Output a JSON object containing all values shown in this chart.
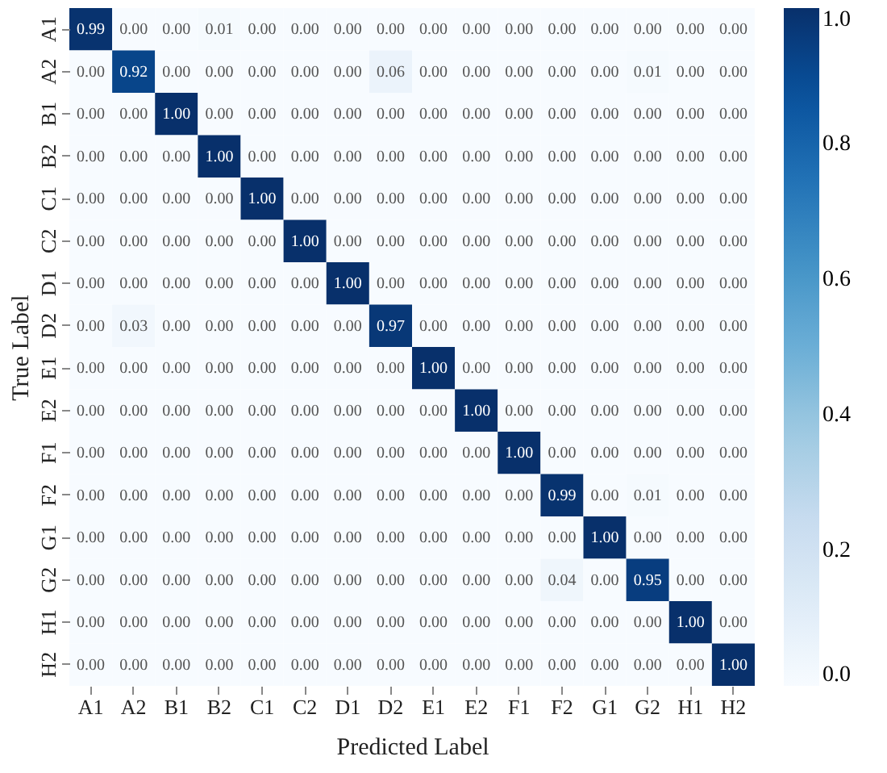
{
  "chart_data": {
    "type": "heatmap",
    "xlabel": "Predicted Label",
    "ylabel": "True Label",
    "categories": [
      "A1",
      "A2",
      "B1",
      "B2",
      "C1",
      "C2",
      "D1",
      "D2",
      "E1",
      "E2",
      "F1",
      "F2",
      "G1",
      "G2",
      "H1",
      "H2"
    ],
    "y_categories": [
      "A1",
      "A2",
      "B1",
      "B2",
      "C1",
      "C2",
      "D1",
      "D2",
      "E1",
      "E2",
      "F1",
      "F2",
      "G1",
      "G2",
      "H1",
      "H2"
    ],
    "cells": [
      [
        0.99,
        0,
        0,
        0.01,
        0,
        0,
        0,
        0,
        0,
        0,
        0,
        0,
        0,
        0,
        0,
        0
      ],
      [
        0,
        0.92,
        0,
        0,
        0,
        0,
        0,
        0.06,
        0,
        0,
        0,
        0,
        0,
        0.01,
        0,
        0
      ],
      [
        0,
        0,
        1,
        0,
        0,
        0,
        0,
        0,
        0,
        0,
        0,
        0,
        0,
        0,
        0,
        0
      ],
      [
        0,
        0,
        0,
        1,
        0,
        0,
        0,
        0,
        0,
        0,
        0,
        0,
        0,
        0,
        0,
        0
      ],
      [
        0,
        0,
        0,
        0,
        1,
        0,
        0,
        0,
        0,
        0,
        0,
        0,
        0,
        0,
        0,
        0
      ],
      [
        0,
        0,
        0,
        0,
        0,
        1,
        0,
        0,
        0,
        0,
        0,
        0,
        0,
        0,
        0,
        0
      ],
      [
        0,
        0,
        0,
        0,
        0,
        0,
        1,
        0,
        0,
        0,
        0,
        0,
        0,
        0,
        0,
        0
      ],
      [
        0,
        0.03,
        0,
        0,
        0,
        0,
        0,
        0.97,
        0,
        0,
        0,
        0,
        0,
        0,
        0,
        0
      ],
      [
        0,
        0,
        0,
        0,
        0,
        0,
        0,
        0,
        1,
        0,
        0,
        0,
        0,
        0,
        0,
        0
      ],
      [
        0,
        0,
        0,
        0,
        0,
        0,
        0,
        0,
        0,
        1,
        0,
        0,
        0,
        0,
        0,
        0
      ],
      [
        0,
        0,
        0,
        0,
        0,
        0,
        0,
        0,
        0,
        0,
        1,
        0,
        0,
        0,
        0,
        0
      ],
      [
        0,
        0,
        0,
        0,
        0,
        0,
        0,
        0,
        0,
        0,
        0,
        0.99,
        0,
        0.01,
        0,
        0
      ],
      [
        0,
        0,
        0,
        0,
        0,
        0,
        0,
        0,
        0,
        0,
        0,
        0,
        1,
        0,
        0,
        0
      ],
      [
        0,
        0,
        0,
        0,
        0,
        0,
        0,
        0,
        0,
        0,
        0,
        0.04,
        0,
        0.95,
        0,
        0
      ],
      [
        0,
        0,
        0,
        0,
        0,
        0,
        0,
        0,
        0,
        0,
        0,
        0,
        0,
        0,
        1,
        0
      ],
      [
        0,
        0,
        0,
        0,
        0,
        0,
        0,
        0,
        0,
        0,
        0,
        0,
        0,
        0,
        0,
        1
      ]
    ],
    "cell_labels": [
      [
        "0.99",
        "0.00",
        "0.00",
        "0.01",
        "0.00",
        "0.00",
        "0.00",
        "0.00",
        "0.00",
        "0.00",
        "0.00",
        "0.00",
        "0.00",
        "0.00",
        "0.00",
        "0.00"
      ],
      [
        "0.00",
        "0.92",
        "0.00",
        "0.00",
        "0.00",
        "0.00",
        "0.00",
        "0.06",
        "0.00",
        "0.00",
        "0.00",
        "0.00",
        "0.00",
        "0.01",
        "0.00",
        "0.00"
      ],
      [
        "0.00",
        "0.00",
        "1.00",
        "0.00",
        "0.00",
        "0.00",
        "0.00",
        "0.00",
        "0.00",
        "0.00",
        "0.00",
        "0.00",
        "0.00",
        "0.00",
        "0.00",
        "0.00"
      ],
      [
        "0.00",
        "0.00",
        "0.00",
        "1.00",
        "0.00",
        "0.00",
        "0.00",
        "0.00",
        "0.00",
        "0.00",
        "0.00",
        "0.00",
        "0.00",
        "0.00",
        "0.00",
        "0.00"
      ],
      [
        "0.00",
        "0.00",
        "0.00",
        "0.00",
        "1.00",
        "0.00",
        "0.00",
        "0.00",
        "0.00",
        "0.00",
        "0.00",
        "0.00",
        "0.00",
        "0.00",
        "0.00",
        "0.00"
      ],
      [
        "0.00",
        "0.00",
        "0.00",
        "0.00",
        "0.00",
        "1.00",
        "0.00",
        "0.00",
        "0.00",
        "0.00",
        "0.00",
        "0.00",
        "0.00",
        "0.00",
        "0.00",
        "0.00"
      ],
      [
        "0.00",
        "0.00",
        "0.00",
        "0.00",
        "0.00",
        "0.00",
        "1.00",
        "0.00",
        "0.00",
        "0.00",
        "0.00",
        "0.00",
        "0.00",
        "0.00",
        "0.00",
        "0.00"
      ],
      [
        "0.00",
        "0.03",
        "0.00",
        "0.00",
        "0.00",
        "0.00",
        "0.00",
        "0.97",
        "0.00",
        "0.00",
        "0.00",
        "0.00",
        "0.00",
        "0.00",
        "0.00",
        "0.00"
      ],
      [
        "0.00",
        "0.00",
        "0.00",
        "0.00",
        "0.00",
        "0.00",
        "0.00",
        "0.00",
        "1.00",
        "0.00",
        "0.00",
        "0.00",
        "0.00",
        "0.00",
        "0.00",
        "0.00"
      ],
      [
        "0.00",
        "0.00",
        "0.00",
        "0.00",
        "0.00",
        "0.00",
        "0.00",
        "0.00",
        "0.00",
        "1.00",
        "0.00",
        "0.00",
        "0.00",
        "0.00",
        "0.00",
        "0.00"
      ],
      [
        "0.00",
        "0.00",
        "0.00",
        "0.00",
        "0.00",
        "0.00",
        "0.00",
        "0.00",
        "0.00",
        "0.00",
        "1.00",
        "0.00",
        "0.00",
        "0.00",
        "0.00",
        "0.00"
      ],
      [
        "0.00",
        "0.00",
        "0.00",
        "0.00",
        "0.00",
        "0.00",
        "0.00",
        "0.00",
        "0.00",
        "0.00",
        "0.00",
        "0.99",
        "0.00",
        "0.01",
        "0.00",
        "0.00"
      ],
      [
        "0.00",
        "0.00",
        "0.00",
        "0.00",
        "0.00",
        "0.00",
        "0.00",
        "0.00",
        "0.00",
        "0.00",
        "0.00",
        "0.00",
        "1.00",
        "0.00",
        "0.00",
        "0.00"
      ],
      [
        "0.00",
        "0.00",
        "0.00",
        "0.00",
        "0.00",
        "0.00",
        "0.00",
        "0.00",
        "0.00",
        "0.00",
        "0.00",
        "0.04",
        "0.00",
        "0.95",
        "0.00",
        "0.00"
      ],
      [
        "0.00",
        "0.00",
        "0.00",
        "0.00",
        "0.00",
        "0.00",
        "0.00",
        "0.00",
        "0.00",
        "0.00",
        "0.00",
        "0.00",
        "0.00",
        "0.00",
        "1.00",
        "0.00"
      ],
      [
        "0.00",
        "0.00",
        "0.00",
        "0.00",
        "0.00",
        "0.00",
        "0.00",
        "0.00",
        "0.00",
        "0.00",
        "0.00",
        "0.00",
        "0.00",
        "0.00",
        "0.00",
        "1.00"
      ]
    ],
    "clim": [
      0,
      1
    ],
    "cticks": [
      {
        "value": 0,
        "label": "0.0"
      },
      {
        "value": 0.2,
        "label": "0.2"
      },
      {
        "value": 0.4,
        "label": "0.4"
      },
      {
        "value": 0.6,
        "label": "0.6"
      },
      {
        "value": 0.8,
        "label": "0.8"
      },
      {
        "value": 1,
        "label": "1.0"
      }
    ],
    "grid": false
  }
}
